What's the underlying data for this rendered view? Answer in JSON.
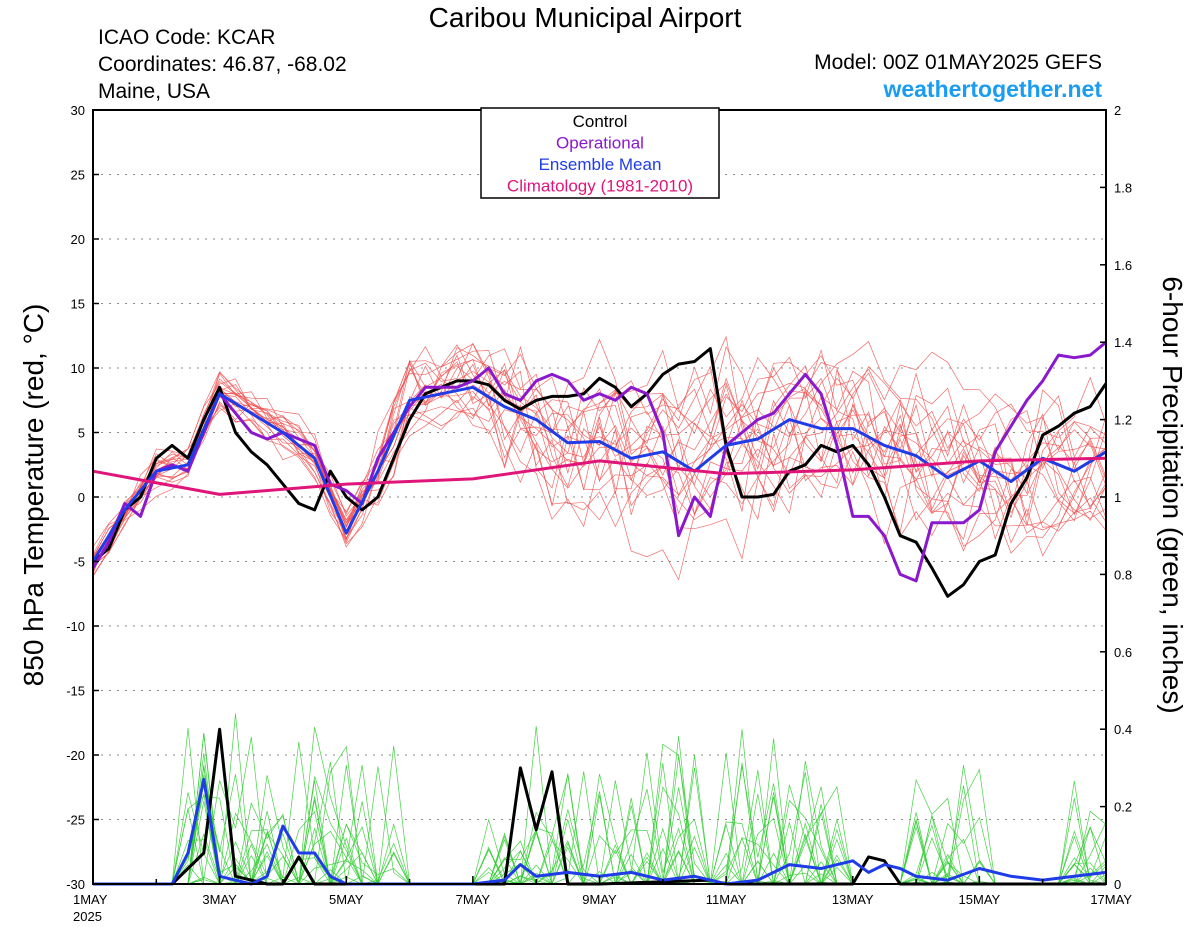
{
  "header": {
    "title": "Caribou Municipal Airport",
    "icao": "ICAO Code: KCAR",
    "coords": "Coordinates: 46.87, -68.02",
    "location": "Maine, USA",
    "model": "Model: 00Z 01MAY2025 GEFS",
    "brand": "weathertogether.net"
  },
  "colors": {
    "members": "#f05050",
    "members_precip": "#33cc33",
    "control": "#000000",
    "operational": "#8a18cc",
    "ensemble_mean": "#1f3ce8",
    "climatology": "#e0157a",
    "brand": "#1a9cf0"
  },
  "chart_data": {
    "type": "line",
    "title": "Caribou Municipal Airport",
    "ylabel": "850 hPa Temperature (red, °C)",
    "y2label": "6-hour Precipitation (green, inches)",
    "ylim": [
      -30,
      30
    ],
    "y2lim": [
      0,
      2
    ],
    "yticks": [
      -30,
      -25,
      -20,
      -15,
      -10,
      -5,
      0,
      5,
      10,
      15,
      20,
      25,
      30
    ],
    "y2ticks": [
      0,
      0.2,
      0.4,
      0.6,
      0.8,
      1,
      1.2,
      1.4,
      1.6,
      1.8,
      2
    ],
    "xlim": [
      0,
      16
    ],
    "xticks": [
      {
        "value": 0,
        "label": "1MAY",
        "sublabel": "2025"
      },
      {
        "value": 2,
        "label": "3MAY"
      },
      {
        "value": 4,
        "label": "5MAY"
      },
      {
        "value": 6,
        "label": "7MAY"
      },
      {
        "value": 8,
        "label": "9MAY"
      },
      {
        "value": 10,
        "label": "11MAY"
      },
      {
        "value": 12,
        "label": "13MAY"
      },
      {
        "value": 14,
        "label": "15MAY"
      },
      {
        "value": 16,
        "label": "17MAY"
      }
    ],
    "x_unit": "days since 1MAY 00Z",
    "grid": true,
    "legend": {
      "placement": "top-center",
      "entries": [
        {
          "label": "Control",
          "color": "#000000"
        },
        {
          "label": "Operational",
          "color": "#8a18cc"
        },
        {
          "label": "Ensemble Mean",
          "color": "#1f3ce8"
        },
        {
          "label": "Climatology (1981-2010)",
          "color": "#e0157a"
        }
      ]
    },
    "series": [
      {
        "name": "Control",
        "axis": "temperature",
        "points": [
          [
            0,
            -5
          ],
          [
            0.25,
            -4
          ],
          [
            0.5,
            -1
          ],
          [
            0.75,
            0
          ],
          [
            1,
            3
          ],
          [
            1.25,
            4
          ],
          [
            1.5,
            3
          ],
          [
            1.75,
            6
          ],
          [
            2,
            8.5
          ],
          [
            2.25,
            5
          ],
          [
            2.5,
            3.5
          ],
          [
            2.75,
            2.5
          ],
          [
            3,
            1
          ],
          [
            3.25,
            -0.5
          ],
          [
            3.5,
            -1
          ],
          [
            3.75,
            2
          ],
          [
            4,
            0
          ],
          [
            4.25,
            -1
          ],
          [
            4.5,
            0
          ],
          [
            4.75,
            3
          ],
          [
            5,
            6
          ],
          [
            5.25,
            8
          ],
          [
            5.5,
            8.5
          ],
          [
            5.75,
            9
          ],
          [
            6,
            9
          ],
          [
            6.25,
            8.7
          ],
          [
            6.5,
            7.5
          ],
          [
            6.75,
            6.8
          ],
          [
            7,
            7.5
          ],
          [
            7.25,
            7.8
          ],
          [
            7.5,
            7.8
          ],
          [
            7.75,
            8
          ],
          [
            8,
            9.2
          ],
          [
            8.25,
            8.5
          ],
          [
            8.5,
            7
          ],
          [
            8.75,
            8
          ],
          [
            9,
            9.5
          ],
          [
            9.25,
            10.3
          ],
          [
            9.5,
            10.5
          ],
          [
            9.75,
            11.5
          ],
          [
            10,
            4
          ],
          [
            10.25,
            0
          ],
          [
            10.5,
            0
          ],
          [
            10.75,
            0.2
          ],
          [
            11,
            2
          ],
          [
            11.25,
            2.5
          ],
          [
            11.5,
            4
          ],
          [
            11.75,
            3.5
          ],
          [
            12,
            4
          ],
          [
            12.25,
            2.5
          ],
          [
            12.5,
            0
          ],
          [
            12.75,
            -3
          ],
          [
            13,
            -3.5
          ],
          [
            13.25,
            -5.5
          ],
          [
            13.5,
            -7.7
          ],
          [
            13.75,
            -6.8
          ],
          [
            14,
            -5
          ],
          [
            14.25,
            -4.5
          ],
          [
            14.5,
            -0.5
          ],
          [
            14.75,
            1.5
          ],
          [
            15,
            4.8
          ],
          [
            15.25,
            5.5
          ],
          [
            15.5,
            6.5
          ],
          [
            15.75,
            7
          ],
          [
            16,
            8.8
          ]
        ]
      },
      {
        "name": "Operational",
        "axis": "temperature",
        "points": [
          [
            0,
            -5.5
          ],
          [
            0.25,
            -3.5
          ],
          [
            0.5,
            -0.5
          ],
          [
            0.75,
            -1.5
          ],
          [
            1,
            2
          ],
          [
            1.25,
            2.5
          ],
          [
            1.5,
            2
          ],
          [
            1.75,
            5
          ],
          [
            2,
            8
          ],
          [
            2.25,
            6.5
          ],
          [
            2.5,
            5
          ],
          [
            2.75,
            4.5
          ],
          [
            3,
            5
          ],
          [
            3.25,
            4.5
          ],
          [
            3.5,
            4
          ],
          [
            3.75,
            1
          ],
          [
            4,
            0.5
          ],
          [
            4.25,
            -0.5
          ],
          [
            4.5,
            3
          ],
          [
            4.75,
            5
          ],
          [
            5,
            7
          ],
          [
            5.25,
            8.5
          ],
          [
            5.5,
            8.5
          ],
          [
            5.75,
            8.5
          ],
          [
            6,
            9
          ],
          [
            6.25,
            10
          ],
          [
            6.5,
            8
          ],
          [
            6.75,
            7.5
          ],
          [
            7,
            9
          ],
          [
            7.25,
            9.5
          ],
          [
            7.5,
            9
          ],
          [
            7.75,
            7.5
          ],
          [
            8,
            8
          ],
          [
            8.25,
            7.5
          ],
          [
            8.5,
            8.5
          ],
          [
            8.75,
            8
          ],
          [
            9,
            5
          ],
          [
            9.25,
            -3
          ],
          [
            9.5,
            0
          ],
          [
            9.75,
            -1.5
          ],
          [
            10,
            4
          ],
          [
            10.25,
            5
          ],
          [
            10.5,
            6
          ],
          [
            10.75,
            6.5
          ],
          [
            11,
            8
          ],
          [
            11.25,
            9.5
          ],
          [
            11.5,
            8
          ],
          [
            11.75,
            4
          ],
          [
            12,
            -1.5
          ],
          [
            12.25,
            -1.5
          ],
          [
            12.5,
            -3
          ],
          [
            12.75,
            -6
          ],
          [
            13,
            -6.5
          ],
          [
            13.25,
            -2
          ],
          [
            13.5,
            -2
          ],
          [
            13.75,
            -2
          ],
          [
            14,
            -1
          ],
          [
            14.25,
            3.5
          ],
          [
            14.5,
            5.5
          ],
          [
            14.75,
            7.5
          ],
          [
            15,
            9
          ],
          [
            15.25,
            11
          ],
          [
            15.5,
            10.8
          ],
          [
            15.75,
            11
          ],
          [
            16,
            12
          ]
        ]
      },
      {
        "name": "Ensemble Mean",
        "axis": "temperature",
        "points": [
          [
            0,
            -5
          ],
          [
            0.5,
            -1
          ],
          [
            1,
            2
          ],
          [
            1.5,
            2.5
          ],
          [
            2,
            8
          ],
          [
            2.5,
            6.5
          ],
          [
            3,
            5
          ],
          [
            3.5,
            3
          ],
          [
            4,
            -2.8
          ],
          [
            4.5,
            2
          ],
          [
            5,
            7.5
          ],
          [
            5.5,
            8
          ],
          [
            6,
            8.5
          ],
          [
            6.5,
            7
          ],
          [
            7,
            6
          ],
          [
            7.5,
            4.2
          ],
          [
            8,
            4.3
          ],
          [
            8.5,
            3
          ],
          [
            9,
            3.5
          ],
          [
            9.5,
            2
          ],
          [
            10,
            4
          ],
          [
            10.5,
            4.5
          ],
          [
            11,
            6
          ],
          [
            11.5,
            5.3
          ],
          [
            12,
            5.3
          ],
          [
            12.5,
            4
          ],
          [
            13,
            3.2
          ],
          [
            13.5,
            1.5
          ],
          [
            14,
            2.8
          ],
          [
            14.5,
            1.2
          ],
          [
            15,
            3
          ],
          [
            15.5,
            2
          ],
          [
            16,
            3.5
          ]
        ]
      },
      {
        "name": "Climatology (1981-2010)",
        "axis": "temperature",
        "points": [
          [
            0,
            2
          ],
          [
            2,
            0.2
          ],
          [
            4,
            1
          ],
          [
            6,
            1.4
          ],
          [
            8,
            2.8
          ],
          [
            10,
            1.8
          ],
          [
            12,
            2.1
          ],
          [
            14,
            2.8
          ],
          [
            16,
            3
          ]
        ]
      },
      {
        "name": "Control",
        "axis": "precipitation",
        "points": [
          [
            0,
            0
          ],
          [
            1.25,
            0
          ],
          [
            1.75,
            0.08
          ],
          [
            2,
            0.4
          ],
          [
            2.25,
            0.02
          ],
          [
            2.75,
            0
          ],
          [
            3,
            0
          ],
          [
            3.25,
            0.07
          ],
          [
            3.5,
            0
          ],
          [
            6.5,
            0
          ],
          [
            6.75,
            0.3
          ],
          [
            7,
            0.14
          ],
          [
            7.25,
            0.29
          ],
          [
            7.5,
            0
          ],
          [
            8,
            0
          ],
          [
            9.75,
            0.01
          ],
          [
            10,
            0
          ],
          [
            12,
            0
          ],
          [
            12.25,
            0.07
          ],
          [
            12.5,
            0.06
          ],
          [
            12.75,
            0
          ],
          [
            16,
            0
          ]
        ]
      },
      {
        "name": "Ensemble Mean",
        "axis": "precipitation",
        "points": [
          [
            0,
            0
          ],
          [
            1.25,
            0
          ],
          [
            1.5,
            0.08
          ],
          [
            1.75,
            0.27
          ],
          [
            2,
            0.02
          ],
          [
            2.5,
            0
          ],
          [
            2.75,
            0.02
          ],
          [
            3,
            0.15
          ],
          [
            3.25,
            0.08
          ],
          [
            3.5,
            0.08
          ],
          [
            3.75,
            0.02
          ],
          [
            4,
            0
          ],
          [
            6,
            0
          ],
          [
            6.5,
            0.01
          ],
          [
            6.75,
            0.05
          ],
          [
            7,
            0.02
          ],
          [
            7.5,
            0.03
          ],
          [
            8,
            0.02
          ],
          [
            8.5,
            0.03
          ],
          [
            9,
            0.01
          ],
          [
            9.5,
            0.02
          ],
          [
            10,
            0
          ],
          [
            10.5,
            0.01
          ],
          [
            11,
            0.05
          ],
          [
            11.5,
            0.04
          ],
          [
            12,
            0.06
          ],
          [
            12.25,
            0.03
          ],
          [
            12.5,
            0.05
          ],
          [
            12.75,
            0.04
          ],
          [
            13,
            0.02
          ],
          [
            13.5,
            0.01
          ],
          [
            14,
            0.04
          ],
          [
            14.5,
            0.02
          ],
          [
            15,
            0.01
          ],
          [
            15.5,
            0.02
          ],
          [
            16,
            0.03
          ]
        ]
      }
    ]
  }
}
